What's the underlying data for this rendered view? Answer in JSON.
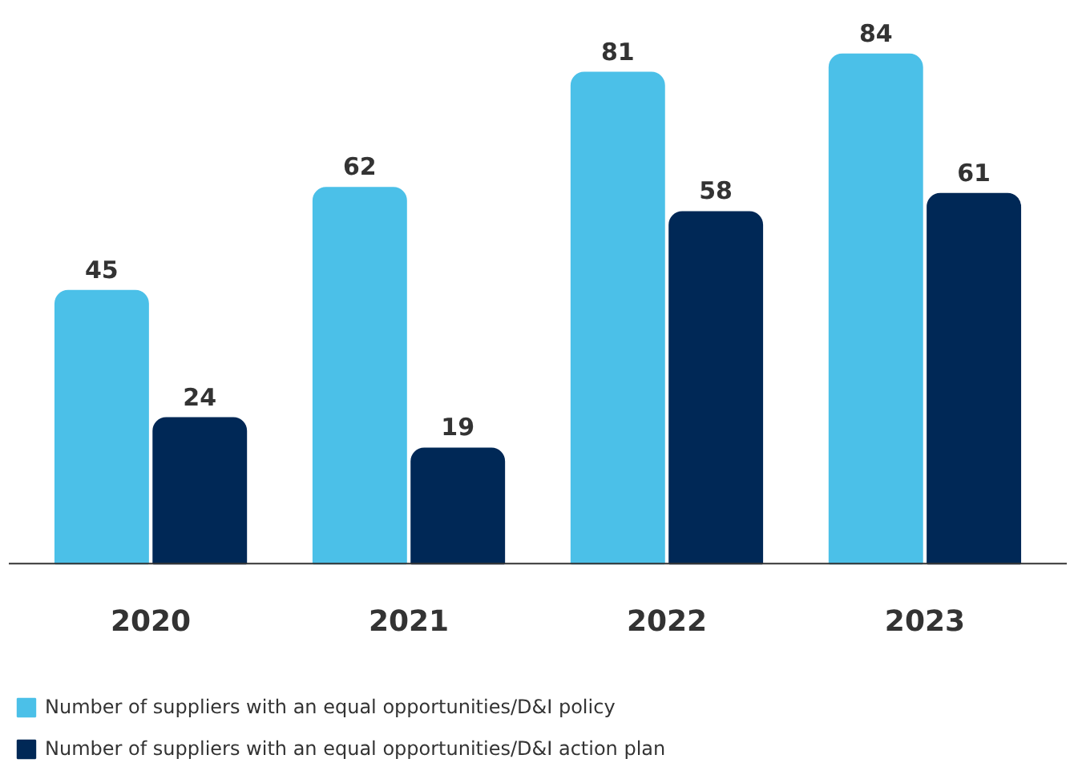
{
  "chart_data": {
    "type": "bar",
    "categories": [
      "2020",
      "2021",
      "2022",
      "2023"
    ],
    "series": [
      {
        "name": "Number of suppliers with an equal opportunities/D&I policy",
        "color": "#4bc0e8",
        "values": [
          45,
          62,
          81,
          84
        ]
      },
      {
        "name": "Number of suppliers with an equal opportunities/D&I action plan",
        "color": "#002856",
        "values": [
          24,
          19,
          58,
          61
        ]
      }
    ],
    "data_labels": true,
    "legend": "bottom"
  }
}
